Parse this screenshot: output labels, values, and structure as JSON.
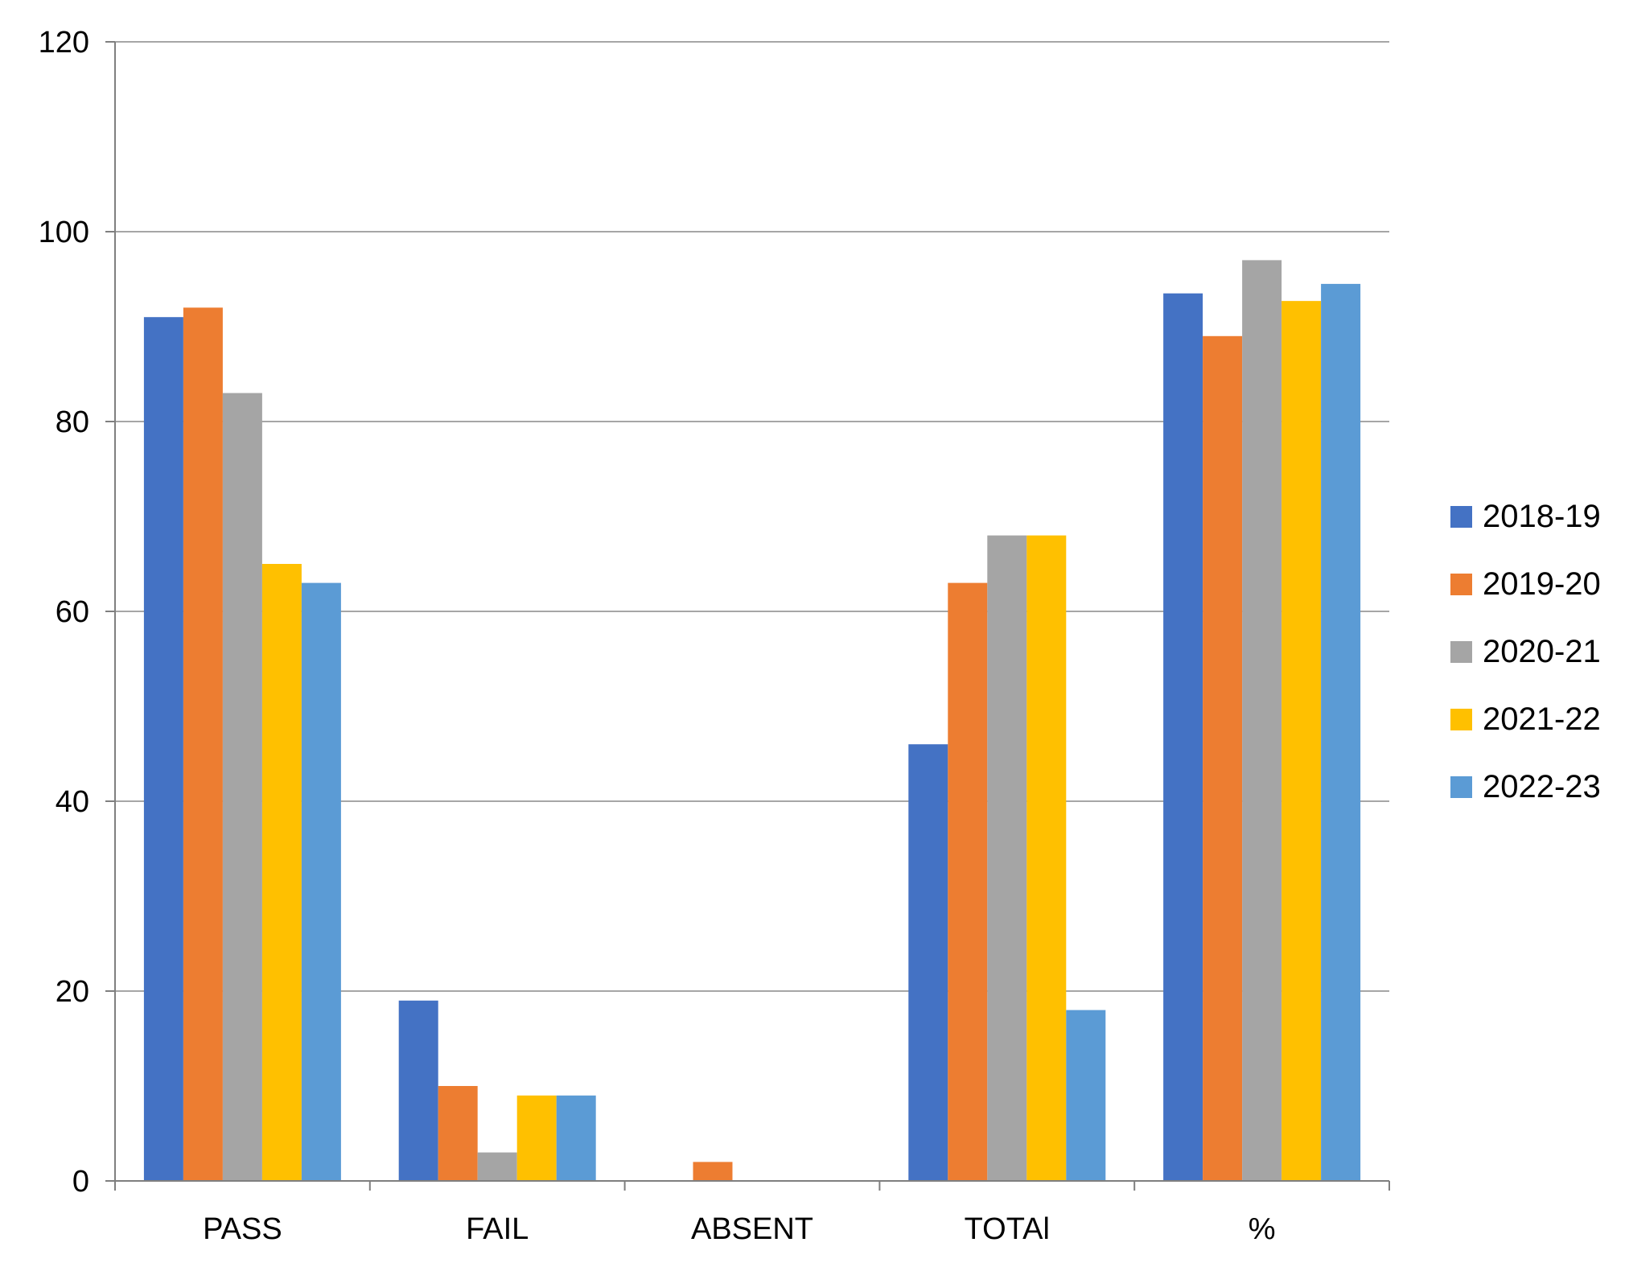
{
  "chart_data": {
    "type": "bar",
    "categories": [
      "PASS",
      "FAIL",
      "ABSENT",
      "TOTAl",
      "%"
    ],
    "series": [
      {
        "name": "2018-19",
        "color": "#4472C4",
        "values": [
          91,
          19,
          0,
          46,
          93.5
        ]
      },
      {
        "name": "2019-20",
        "color": "#ED7D31",
        "values": [
          92,
          10,
          2,
          63,
          89
        ]
      },
      {
        "name": "2020-21",
        "color": "#A5A5A5",
        "values": [
          83,
          3,
          0,
          68,
          97
        ]
      },
      {
        "name": "2021-22",
        "color": "#FFC000",
        "values": [
          65,
          9,
          0,
          68,
          92.7
        ]
      },
      {
        "name": "2022-23",
        "color": "#5B9BD5",
        "values": [
          63,
          9,
          0,
          18,
          94.5
        ]
      }
    ],
    "ylim": [
      0,
      120
    ],
    "yticks": [
      0,
      20,
      40,
      60,
      80,
      100,
      120
    ],
    "grid": true,
    "legend_position": "right"
  }
}
